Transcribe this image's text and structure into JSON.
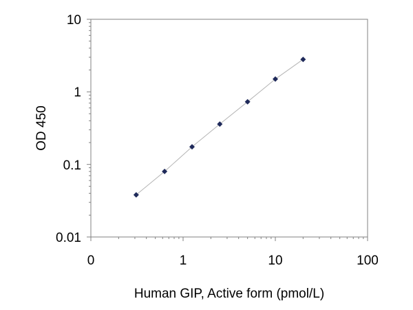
{
  "chart_data": {
    "type": "scatter",
    "title": "",
    "xlabel": "Human GIP, Active form (pmol/L)",
    "ylabel": "OD 450",
    "x_scale": "log",
    "y_scale": "log",
    "xlim": [
      0.1,
      100
    ],
    "ylim": [
      0.01,
      10
    ],
    "x_tick_labels": [
      "0",
      "1",
      "10",
      "100"
    ],
    "y_tick_labels": [
      "10",
      "1",
      "0.1",
      "0.01"
    ],
    "grid": false,
    "legend": "none",
    "trendline": true,
    "colors": {
      "marker": "#1f2a5a",
      "trendline": "#b4b4b4",
      "axis": "#808080"
    },
    "series": [
      {
        "x": [
          0.31,
          0.63,
          1.25,
          2.5,
          5,
          10,
          20
        ],
        "y": [
          0.038,
          0.08,
          0.175,
          0.36,
          0.73,
          1.5,
          2.8
        ]
      }
    ]
  }
}
